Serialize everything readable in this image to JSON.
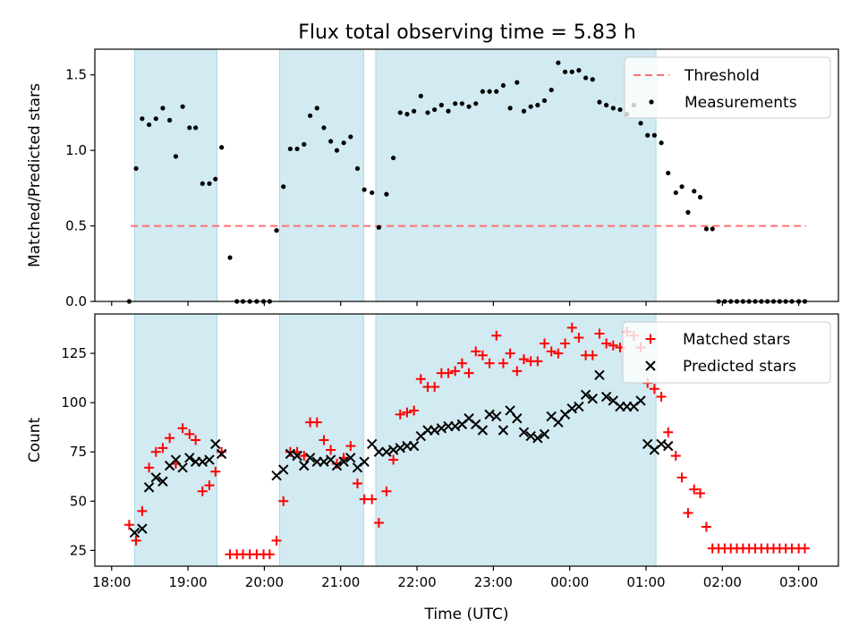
{
  "title": "Flux total observing time = 5.83 h",
  "x_tick_labels": [
    "18:00",
    "19:00",
    "20:00",
    "21:00",
    "22:00",
    "23:00",
    "00:00",
    "01:00",
    "02:00",
    "03:00"
  ],
  "colors": {
    "span": "#add8e6",
    "threshold": "#ff6f6f",
    "measurements": "#000000",
    "matched": "#ff0000",
    "predicted": "#000000"
  },
  "chart_data": [
    {
      "type": "scatter",
      "panel": "top",
      "xlabel": "",
      "ylabel": "Matched/Predicted stars",
      "x_unit": "hours after 18:00 UTC",
      "xlim": [
        -0.22,
        9.52
      ],
      "ylim": [
        0,
        1.67
      ],
      "y_ticks": [
        "0.0",
        "0.5",
        "1.0",
        "1.5"
      ],
      "y_tick_values": [
        0,
        0.5,
        1.0,
        1.5
      ],
      "legend_position": "top-right",
      "observing_spans": [
        [
          0.3,
          1.38
        ],
        [
          2.2,
          3.3
        ],
        [
          3.46,
          7.13
        ]
      ],
      "threshold": {
        "name": "Threshold",
        "value": 0.5,
        "x": [
          0.25,
          9.1
        ],
        "style": "dashed"
      },
      "measurements": {
        "name": "Measurements",
        "x": [
          0.23,
          0.32,
          0.4,
          0.49,
          0.58,
          0.67,
          0.76,
          0.84,
          0.93,
          1.02,
          1.1,
          1.19,
          1.28,
          1.36,
          1.44,
          1.55,
          1.64,
          1.72,
          1.81,
          1.9,
          1.99,
          2.07,
          2.16,
          2.25,
          2.34,
          2.43,
          2.52,
          2.6,
          2.69,
          2.78,
          2.87,
          2.95,
          3.04,
          3.13,
          3.22,
          3.31,
          3.41,
          3.5,
          3.6,
          3.69,
          3.78,
          3.87,
          3.96,
          4.05,
          4.14,
          4.23,
          4.32,
          4.41,
          4.5,
          4.59,
          4.68,
          4.77,
          4.86,
          4.95,
          5.04,
          5.13,
          5.22,
          5.31,
          5.4,
          5.49,
          5.58,
          5.67,
          5.76,
          5.85,
          5.94,
          6.03,
          6.12,
          6.21,
          6.3,
          6.39,
          6.48,
          6.57,
          6.66,
          6.75,
          6.84,
          6.93,
          7.02,
          7.11,
          7.2,
          7.29,
          7.39,
          7.47,
          7.55,
          7.63,
          7.71,
          7.79,
          7.87,
          7.95,
          8.03,
          8.11,
          8.19,
          8.27,
          8.35,
          8.43,
          8.51,
          8.59,
          8.67,
          8.75,
          8.83,
          8.91,
          9.0,
          9.08
        ],
        "y": [
          0.0,
          0.88,
          1.21,
          1.17,
          1.21,
          1.28,
          1.2,
          0.96,
          1.29,
          1.15,
          1.15,
          0.78,
          0.78,
          0.81,
          1.02,
          0.29,
          0.0,
          0.0,
          0.0,
          0.0,
          0.0,
          0.0,
          0.47,
          0.76,
          1.01,
          1.01,
          1.04,
          1.23,
          1.28,
          1.15,
          1.06,
          1.0,
          1.05,
          1.09,
          0.88,
          0.74,
          0.72,
          0.49,
          0.71,
          0.95,
          1.25,
          1.24,
          1.26,
          1.36,
          1.25,
          1.27,
          1.3,
          1.26,
          1.31,
          1.31,
          1.29,
          1.31,
          1.39,
          1.39,
          1.39,
          1.43,
          1.28,
          1.45,
          1.26,
          1.29,
          1.3,
          1.33,
          1.4,
          1.58,
          1.52,
          1.52,
          1.53,
          1.48,
          1.47,
          1.32,
          1.3,
          1.28,
          1.27,
          1.24,
          1.3,
          1.18,
          1.1,
          1.1,
          1.05,
          0.85,
          0.72,
          0.76,
          0.59,
          0.73,
          0.69,
          0.48,
          0.48,
          0.0,
          0.0,
          0.0,
          0.0,
          0.0,
          0.0,
          0.0,
          0.0,
          0.0,
          0.0,
          0.0,
          0.0,
          0.0,
          0.0,
          0.0
        ]
      }
    },
    {
      "type": "scatter",
      "panel": "bottom",
      "xlabel": "Time (UTC)",
      "ylabel": "Count",
      "x_unit": "hours after 18:00 UTC",
      "xlim": [
        -0.22,
        9.52
      ],
      "ylim": [
        17,
        145
      ],
      "y_ticks": [
        "25",
        "50",
        "75",
        "100",
        "125"
      ],
      "y_tick_values": [
        25,
        50,
        75,
        100,
        125
      ],
      "legend_position": "top-right",
      "observing_spans": [
        [
          0.3,
          1.38
        ],
        [
          2.2,
          3.3
        ],
        [
          3.46,
          7.13
        ]
      ],
      "series": [
        {
          "name": "Matched stars",
          "marker": "plus",
          "x": [
            0.23,
            0.32,
            0.4,
            0.49,
            0.58,
            0.67,
            0.76,
            0.84,
            0.93,
            1.02,
            1.1,
            1.19,
            1.28,
            1.36,
            1.44,
            1.55,
            1.64,
            1.72,
            1.81,
            1.9,
            1.99,
            2.07,
            2.16,
            2.25,
            2.34,
            2.43,
            2.52,
            2.6,
            2.69,
            2.78,
            2.87,
            2.95,
            3.04,
            3.13,
            3.22,
            3.31,
            3.41,
            3.5,
            3.6,
            3.69,
            3.78,
            3.87,
            3.96,
            4.05,
            4.14,
            4.23,
            4.32,
            4.41,
            4.5,
            4.59,
            4.68,
            4.77,
            4.86,
            4.95,
            5.04,
            5.13,
            5.22,
            5.31,
            5.4,
            5.49,
            5.58,
            5.67,
            5.76,
            5.85,
            5.94,
            6.03,
            6.12,
            6.21,
            6.3,
            6.39,
            6.48,
            6.57,
            6.66,
            6.75,
            6.84,
            6.93,
            7.02,
            7.11,
            7.2,
            7.29,
            7.39,
            7.47,
            7.55,
            7.63,
            7.71,
            7.79,
            7.87,
            7.95,
            8.03,
            8.11,
            8.19,
            8.27,
            8.35,
            8.43,
            8.51,
            8.59,
            8.67,
            8.75,
            8.83,
            8.91,
            9.0,
            9.08
          ],
          "y": [
            38,
            30,
            45,
            67,
            75,
            77,
            82,
            69,
            87,
            84,
            81,
            55,
            58,
            65,
            75,
            23,
            23,
            23,
            23,
            23,
            23,
            23,
            30,
            50,
            75,
            75,
            73,
            90,
            90,
            81,
            76,
            69,
            72,
            78,
            59,
            51,
            51,
            39,
            55,
            71,
            94,
            95,
            96,
            112,
            108,
            108,
            115,
            115,
            116,
            120,
            115,
            126,
            124,
            120,
            134,
            120,
            125,
            116,
            122,
            121,
            121,
            130,
            126,
            125,
            130,
            138,
            133,
            124,
            124,
            135,
            130,
            129,
            128,
            136,
            134,
            128,
            110,
            107,
            103,
            85,
            73,
            62,
            44,
            56,
            54,
            37,
            26,
            26,
            26,
            26,
            26,
            26,
            26,
            26,
            26,
            26,
            26,
            26,
            26,
            26,
            26,
            26
          ]
        },
        {
          "name": "Predicted stars",
          "marker": "x",
          "x": [
            0.3,
            0.4,
            0.49,
            0.58,
            0.67,
            0.76,
            0.84,
            0.93,
            1.02,
            1.1,
            1.19,
            1.28,
            1.36,
            1.44,
            2.16,
            2.25,
            2.34,
            2.43,
            2.52,
            2.6,
            2.69,
            2.78,
            2.87,
            2.95,
            3.04,
            3.13,
            3.22,
            3.31,
            3.41,
            3.5,
            3.6,
            3.69,
            3.78,
            3.87,
            3.96,
            4.05,
            4.14,
            4.23,
            4.32,
            4.41,
            4.5,
            4.59,
            4.68,
            4.77,
            4.86,
            4.95,
            5.04,
            5.13,
            5.22,
            5.31,
            5.4,
            5.49,
            5.58,
            5.67,
            5.76,
            5.85,
            5.94,
            6.03,
            6.12,
            6.21,
            6.3,
            6.39,
            6.48,
            6.57,
            6.66,
            6.75,
            6.84,
            6.93,
            7.02,
            7.11,
            7.2,
            7.29
          ],
          "y": [
            34,
            36,
            57,
            62,
            60,
            68,
            71,
            67,
            72,
            70,
            70,
            71,
            79,
            74,
            63,
            66,
            74,
            73,
            68,
            72,
            70,
            70,
            71,
            68,
            70,
            72,
            67,
            70,
            79,
            75,
            75,
            76,
            77,
            78,
            78,
            83,
            86,
            86,
            87,
            88,
            88,
            89,
            92,
            89,
            86,
            94,
            93,
            86,
            96,
            92,
            85,
            83,
            82,
            84,
            93,
            90,
            94,
            97,
            98,
            104,
            102,
            114,
            103,
            101,
            98,
            98,
            98,
            101,
            79,
            76,
            79,
            78
          ]
        }
      ]
    }
  ]
}
